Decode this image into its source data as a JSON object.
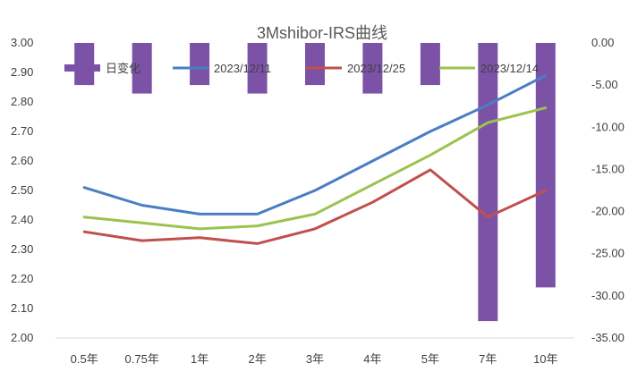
{
  "chart_data": {
    "type": "line",
    "title": "3Mshibor-IRS曲线",
    "categories": [
      "0.5年",
      "0.75年",
      "1年",
      "2年",
      "3年",
      "4年",
      "5年",
      "7年",
      "10年"
    ],
    "ylim": [
      2.0,
      3.0
    ],
    "y_ticks": [
      "3.00",
      "2.90",
      "2.80",
      "2.70",
      "2.60",
      "2.50",
      "2.40",
      "2.30",
      "2.20",
      "2.10",
      "2.00"
    ],
    "y2lim": [
      -35.0,
      0.0
    ],
    "y2_ticks": [
      "0.00",
      "-5.00",
      "-10.00",
      "-15.00",
      "-20.00",
      "-25.00",
      "-30.00",
      "-35.00"
    ],
    "grid": false,
    "legend_position": "top",
    "series": [
      {
        "name": "日变化",
        "type": "bar",
        "axis": "secondary",
        "color": "#7b52a6",
        "values": [
          -5.0,
          -6.0,
          -5.0,
          -6.0,
          -5.0,
          -6.0,
          -5.0,
          -33.0,
          -29.0
        ]
      },
      {
        "name": "2023/12/11",
        "type": "line",
        "axis": "primary",
        "color": "#4a7ec4",
        "values": [
          2.51,
          2.45,
          2.42,
          2.42,
          2.5,
          2.6,
          2.7,
          2.79,
          2.89
        ]
      },
      {
        "name": "2023/12/25",
        "type": "line",
        "axis": "primary",
        "color": "#c0504d",
        "values": [
          2.36,
          2.33,
          2.34,
          2.32,
          2.37,
          2.46,
          2.57,
          2.41,
          2.5
        ]
      },
      {
        "name": "2023/12/14",
        "type": "line",
        "axis": "primary",
        "color": "#9bc34e",
        "values": [
          2.41,
          2.39,
          2.37,
          2.38,
          2.42,
          2.52,
          2.62,
          2.73,
          2.78
        ]
      }
    ]
  }
}
